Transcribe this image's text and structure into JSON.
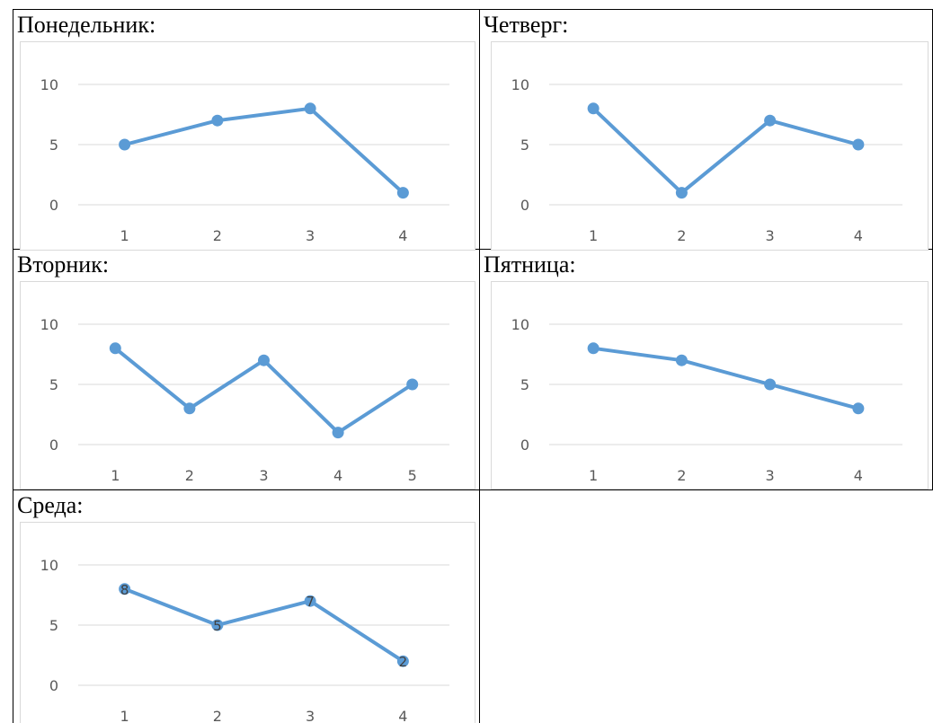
{
  "series_color": "#5b9bd5",
  "chart_data": [
    {
      "type": "line",
      "title": "Понедельник:",
      "x": [
        "1",
        "2",
        "3",
        "4"
      ],
      "series": [
        {
          "values": [
            5,
            7,
            8,
            1
          ]
        }
      ],
      "yticks": [
        "0",
        "5",
        "10"
      ],
      "ylim": [
        0,
        10
      ],
      "grid": true,
      "data_labels": false
    },
    {
      "type": "line",
      "title": "Четверг:",
      "x": [
        "1",
        "2",
        "3",
        "4"
      ],
      "series": [
        {
          "values": [
            8,
            1,
            7,
            5
          ]
        }
      ],
      "yticks": [
        "0",
        "5",
        "10"
      ],
      "ylim": [
        0,
        10
      ],
      "grid": true,
      "data_labels": false
    },
    {
      "type": "line",
      "title": "Вторник:",
      "x": [
        "1",
        "2",
        "3",
        "4",
        "5"
      ],
      "series": [
        {
          "values": [
            8,
            3,
            7,
            1,
            5
          ]
        }
      ],
      "yticks": [
        "0",
        "5",
        "10"
      ],
      "ylim": [
        0,
        10
      ],
      "grid": true,
      "data_labels": false
    },
    {
      "type": "line",
      "title": "Пятница:",
      "x": [
        "1",
        "2",
        "3",
        "4"
      ],
      "series": [
        {
          "values": [
            8,
            7,
            5,
            3
          ]
        }
      ],
      "yticks": [
        "0",
        "5",
        "10"
      ],
      "ylim": [
        0,
        10
      ],
      "grid": true,
      "data_labels": false
    },
    {
      "type": "line",
      "title": "Среда:",
      "x": [
        "1",
        "2",
        "3",
        "4"
      ],
      "series": [
        {
          "values": [
            8,
            5,
            7,
            2
          ]
        }
      ],
      "yticks": [
        "0",
        "5",
        "10"
      ],
      "ylim": [
        0,
        10
      ],
      "grid": true,
      "data_labels": true
    }
  ]
}
